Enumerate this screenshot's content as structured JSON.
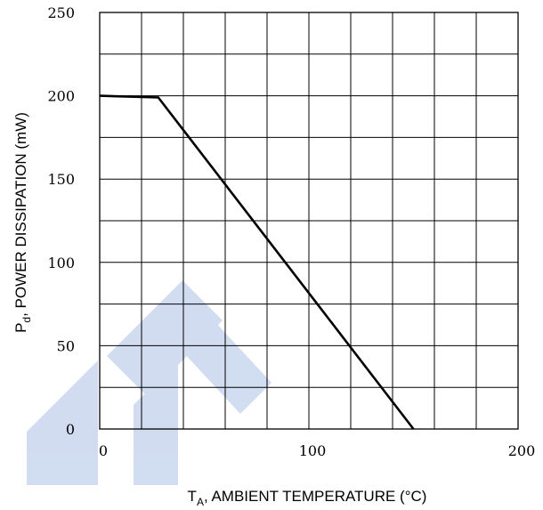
{
  "chart_data": {
    "type": "line",
    "title": "",
    "xlabel": {
      "main": "T",
      "sub": "A",
      "rest": ", AMBIENT TEMPERATURE (°C)"
    },
    "ylabel": {
      "main": "P",
      "sub": "d",
      "rest": ", POWER DISSIPATION (mW)"
    },
    "xlim": [
      0,
      200
    ],
    "ylim": [
      0,
      250
    ],
    "x_ticks": [
      0,
      100,
      200
    ],
    "y_ticks": [
      0,
      50,
      100,
      150,
      200,
      250
    ],
    "x_grid_step": 20,
    "y_grid_step": 25,
    "grid": true,
    "series": [
      {
        "x": [
          0,
          28,
          150
        ],
        "y": [
          200,
          199,
          0
        ]
      }
    ],
    "colors": {
      "line": "#000000",
      "grid": "#000000",
      "watermark": "#c9d7ef"
    }
  }
}
